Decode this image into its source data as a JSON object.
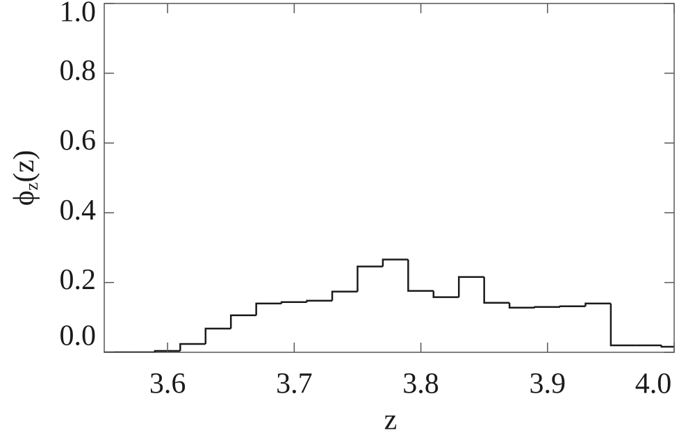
{
  "chart_data": {
    "type": "histogram",
    "xlabel": "z",
    "ylabel": {
      "symbol": "ϕ",
      "subscript": "z",
      "argument": "(z)"
    },
    "bins": [
      3.55,
      3.57,
      3.59,
      3.61,
      3.63,
      3.65,
      3.67,
      3.69,
      3.71,
      3.73,
      3.75,
      3.77,
      3.79,
      3.81,
      3.83,
      3.85,
      3.87,
      3.89,
      3.91,
      3.93,
      3.95,
      3.97,
      3.99,
      4.01
    ],
    "values": [
      0.0,
      0.0,
      0.004,
      0.024,
      0.068,
      0.106,
      0.14,
      0.144,
      0.148,
      0.174,
      0.246,
      0.266,
      0.176,
      0.158,
      0.216,
      0.142,
      0.128,
      0.13,
      0.132,
      0.14,
      0.02,
      0.02,
      0.016
    ],
    "color": "#1a1a1a",
    "xlim": [
      3.55,
      4.0
    ],
    "xticks": [
      3.6,
      3.7,
      3.8,
      3.9,
      {
        "value": 4,
        "label": "4.0"
      }
    ],
    "ylim": [
      0,
      1
    ],
    "yticks": [
      {
        "value": 0,
        "label": "0.0"
      },
      0.2,
      0.4,
      0.6,
      0.8,
      {
        "value": 1,
        "label": "1.0"
      }
    ],
    "grid": false
  }
}
